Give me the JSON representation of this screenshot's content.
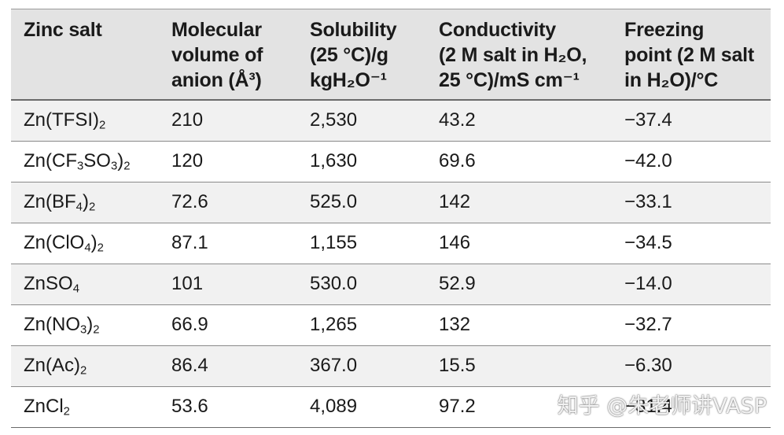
{
  "headers": [
    {
      "lines": [
        "Zinc salt"
      ]
    },
    {
      "lines": [
        "Molecular",
        "volume of",
        "anion (Å³)"
      ]
    },
    {
      "lines": [
        "Solubility",
        "(25 °C)/g",
        "kgH₂O⁻¹"
      ]
    },
    {
      "lines": [
        "Conductivity",
        "(2 M salt in H₂O,",
        "25 °C)/mS cm⁻¹"
      ]
    },
    {
      "lines": [
        "Freezing",
        "point (2 M salt",
        "in H₂O)/°C"
      ]
    }
  ],
  "rows": [
    {
      "salt": {
        "base": "Zn(TFSI)",
        "sub": "2"
      },
      "volume": "210",
      "solubility": "2,530",
      "conductivity": "43.2",
      "freezing": "−37.4"
    },
    {
      "salt": {
        "parts": [
          "Zn(CF",
          "3",
          "SO",
          "3",
          ")",
          "2"
        ]
      },
      "volume": "120",
      "solubility": "1,630",
      "conductivity": "69.6",
      "freezing": "−42.0"
    },
    {
      "salt": {
        "parts": [
          "Zn(BF",
          "4",
          ")",
          "2"
        ]
      },
      "volume": "72.6",
      "solubility": "525.0",
      "conductivity": "142",
      "freezing": "−33.1"
    },
    {
      "salt": {
        "parts": [
          "Zn(ClO",
          "4",
          ")",
          "2"
        ]
      },
      "volume": "87.1",
      "solubility": "1,155",
      "conductivity": "146",
      "freezing": "−34.5"
    },
    {
      "salt": {
        "parts": [
          "ZnSO",
          "4"
        ]
      },
      "volume": "101",
      "solubility": "530.0",
      "conductivity": "52.9",
      "freezing": "−14.0"
    },
    {
      "salt": {
        "parts": [
          "Zn(NO",
          "3",
          ")",
          "2"
        ]
      },
      "volume": "66.9",
      "solubility": "1,265",
      "conductivity": "132",
      "freezing": "−32.7"
    },
    {
      "salt": {
        "parts": [
          "Zn(Ac)",
          "2"
        ]
      },
      "volume": "86.4",
      "solubility": "367.0",
      "conductivity": "15.5",
      "freezing": "−6.30"
    },
    {
      "salt": {
        "parts": [
          "ZnCl",
          "2"
        ]
      },
      "volume": "53.6",
      "solubility": "4,089",
      "conductivity": "97.2",
      "freezing": "−31.4"
    }
  ],
  "watermark": "知乎 @朱老师讲VASP"
}
